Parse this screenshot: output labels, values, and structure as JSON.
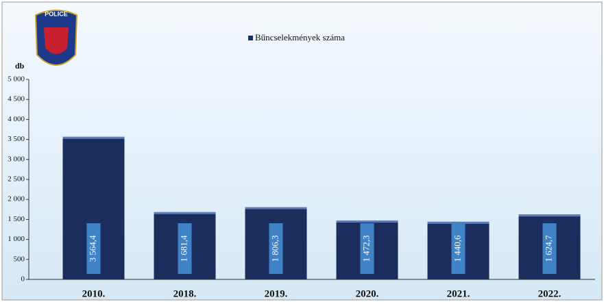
{
  "chart_data": {
    "type": "bar",
    "logo_text": "POLICE",
    "legend": "Bűncselekmények száma",
    "y_label": "db",
    "categories": [
      "2010.",
      "2018.",
      "2019.",
      "2020.",
      "2021.",
      "2022."
    ],
    "values": [
      3564.4,
      1681.4,
      1806.3,
      1472.3,
      1440.6,
      1624.7
    ],
    "value_labels": [
      "3 564,4",
      "1 681,4",
      "1 806,3",
      "1 472,3",
      "1 440,6",
      "1 624,7"
    ],
    "color": "#1b2d5c",
    "ylim": [
      0,
      5000
    ],
    "yticks": [
      0,
      500,
      {
        "value": 1000,
        "label": "1 000"
      },
      {
        "value": 1500,
        "label": "1 500"
      },
      {
        "value": 2000,
        "label": "2 000"
      },
      {
        "value": 2500,
        "label": "2 500"
      },
      {
        "value": 3000,
        "label": "3 000"
      },
      {
        "value": 3500,
        "label": "3 500"
      },
      {
        "value": 4000,
        "label": "4 000"
      },
      {
        "value": 4500,
        "label": "4 500"
      },
      {
        "value": 5000,
        "label": "5 000"
      }
    ]
  }
}
